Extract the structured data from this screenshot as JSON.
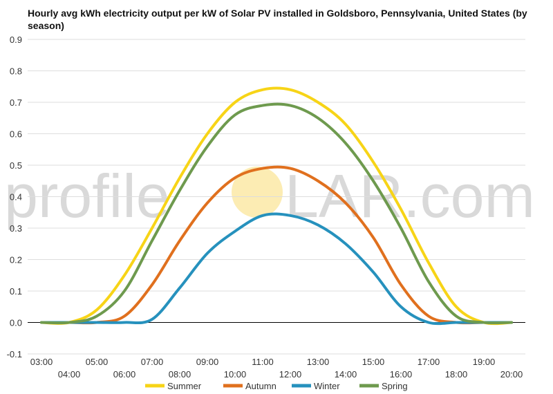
{
  "chart_data": {
    "type": "line",
    "title": "Hourly avg kWh electricity output per kW of Solar PV installed in Goldsboro, Pennsylvania, United States (by season)",
    "xlabel": "",
    "ylabel": "",
    "ylim": [
      -0.1,
      0.9
    ],
    "y_ticks": [
      "-0.1",
      "0.0",
      "0.1",
      "0.2",
      "0.3",
      "0.4",
      "0.5",
      "0.6",
      "0.7",
      "0.8",
      "0.9"
    ],
    "categories": [
      "03:00",
      "04:00",
      "05:00",
      "06:00",
      "07:00",
      "08:00",
      "09:00",
      "10:00",
      "11:00",
      "12:00",
      "13:00",
      "14:00",
      "15:00",
      "16:00",
      "17:00",
      "18:00",
      "19:00",
      "20:00"
    ],
    "grid": true,
    "legend_position": "bottom",
    "series": [
      {
        "name": "Summer",
        "color": "#f7d417",
        "values": [
          0.0,
          0.0,
          0.04,
          0.15,
          0.3,
          0.46,
          0.6,
          0.7,
          0.74,
          0.74,
          0.7,
          0.63,
          0.51,
          0.36,
          0.19,
          0.05,
          0.0,
          0.0
        ]
      },
      {
        "name": "Autumn",
        "color": "#e0701e",
        "values": [
          0.0,
          0.0,
          0.0,
          0.02,
          0.12,
          0.26,
          0.38,
          0.46,
          0.49,
          0.49,
          0.45,
          0.38,
          0.27,
          0.12,
          0.02,
          0.0,
          0.0,
          0.0
        ]
      },
      {
        "name": "Winter",
        "color": "#2691bd",
        "values": [
          0.0,
          0.0,
          0.0,
          0.0,
          0.01,
          0.11,
          0.22,
          0.29,
          0.34,
          0.34,
          0.31,
          0.25,
          0.16,
          0.05,
          0.0,
          0.0,
          0.0,
          0.0
        ]
      },
      {
        "name": "Spring",
        "color": "#6e9a4e",
        "values": [
          0.0,
          0.0,
          0.02,
          0.1,
          0.26,
          0.42,
          0.56,
          0.66,
          0.69,
          0.69,
          0.65,
          0.57,
          0.45,
          0.3,
          0.13,
          0.02,
          0.0,
          0.0
        ]
      }
    ]
  },
  "watermark": {
    "text_left": "profile",
    "text_right": "LAR.com",
    "sun_color": "#fbe9a6"
  }
}
